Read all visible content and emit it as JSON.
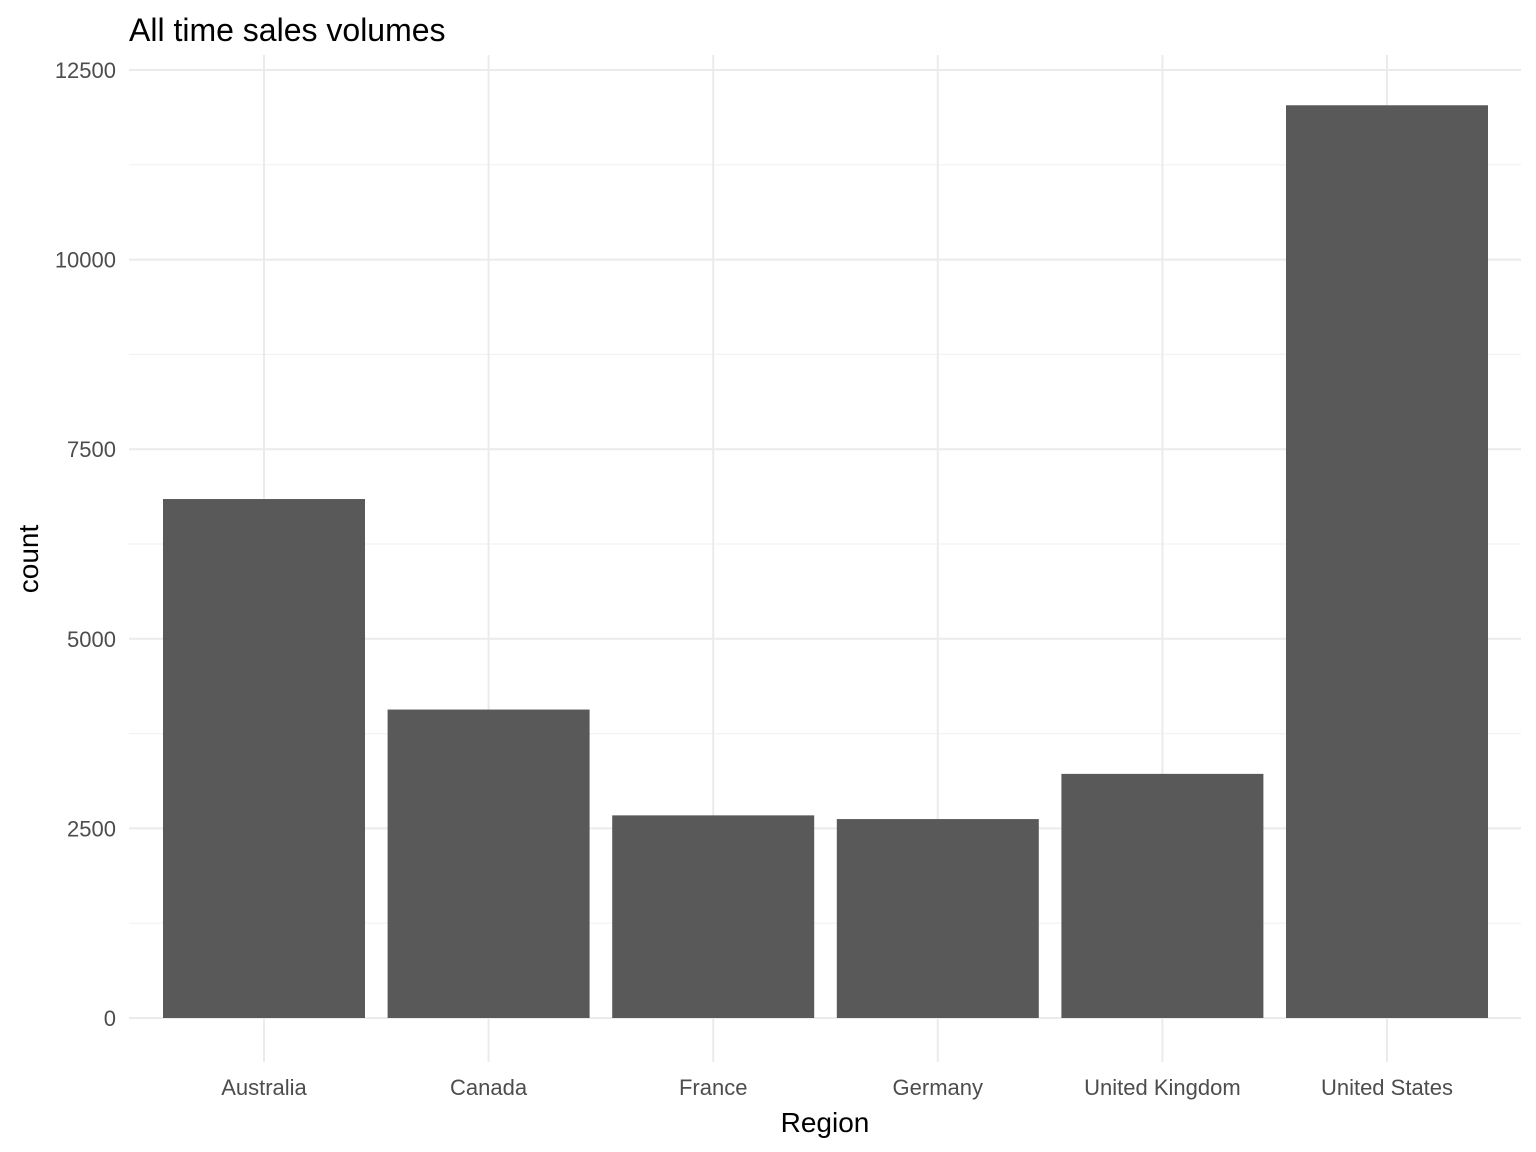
{
  "chart_data": {
    "type": "bar",
    "title": "All time sales volumes",
    "xlabel": "Region",
    "ylabel": "count",
    "categories": [
      "Australia",
      "Canada",
      "France",
      "Germany",
      "United Kingdom",
      "United States"
    ],
    "values": [
      6843,
      4067,
      2672,
      2623,
      3219,
      12035
    ],
    "ylim": [
      0,
      12500
    ],
    "yticks": [
      0,
      2500,
      5000,
      7500,
      10000,
      12500
    ],
    "ytick_labels": [
      "0",
      "2500",
      "5000",
      "7500",
      "10000",
      "12500"
    ],
    "grid": true,
    "legend": "none",
    "colors": {
      "bar": "#595959",
      "grid_major": "#ebebeb",
      "grid_minor": "#f2f2f2",
      "tick_text": "#4d4d4d",
      "title_text": "#000000"
    }
  }
}
